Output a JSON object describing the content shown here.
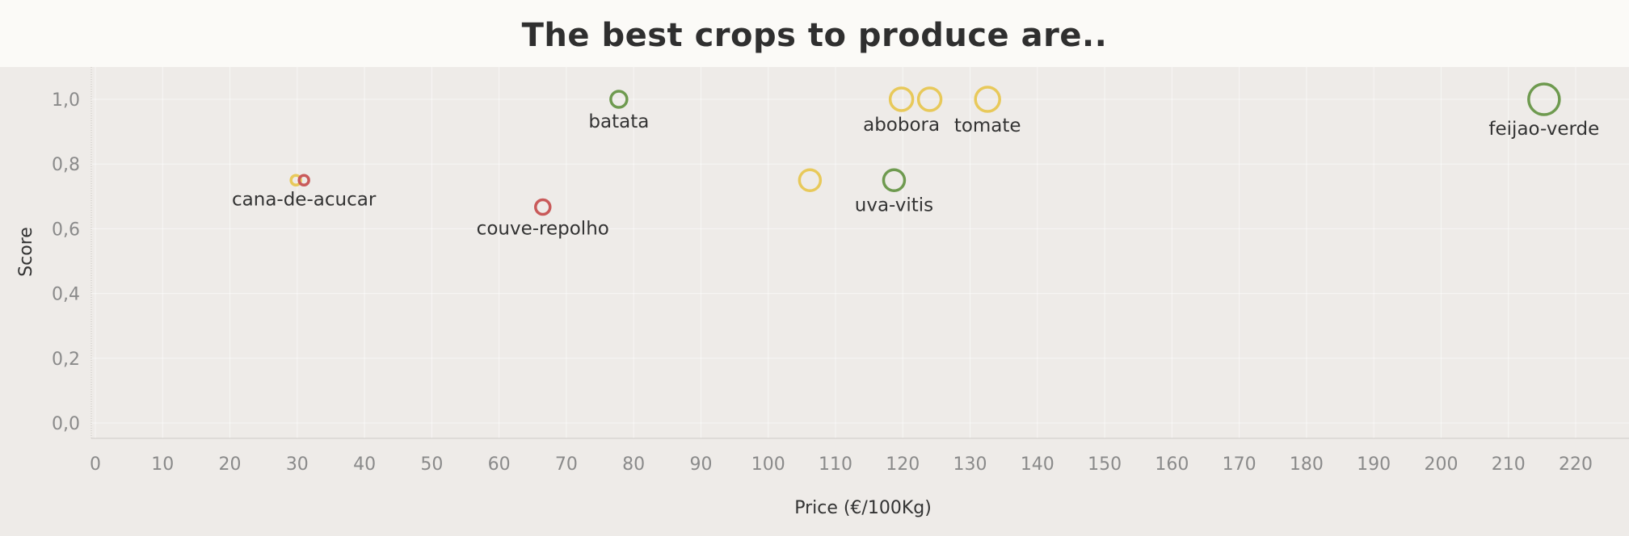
{
  "title": "The best crops to produce are..",
  "chart_data": {
    "type": "scatter",
    "xlabel": "Price (€/100Kg)",
    "ylabel": "Score",
    "xlim": [
      0,
      227
    ],
    "ylim": [
      -0.05,
      1.1
    ],
    "x_ticks": [
      "0",
      "10",
      "20",
      "30",
      "40",
      "50",
      "60",
      "70",
      "80",
      "90",
      "100",
      "110",
      "120",
      "130",
      "140",
      "150",
      "160",
      "170",
      "180",
      "190",
      "200",
      "210",
      "220"
    ],
    "x_tick_values": [
      0,
      10,
      20,
      30,
      40,
      50,
      60,
      70,
      80,
      90,
      100,
      110,
      120,
      130,
      140,
      150,
      160,
      170,
      180,
      190,
      200,
      210,
      220
    ],
    "y_ticks": [
      "0,0",
      "0,2",
      "0,4",
      "0,6",
      "0,8",
      "1,0"
    ],
    "y_tick_values": [
      0.0,
      0.2,
      0.4,
      0.6,
      0.8,
      1.0
    ],
    "grid": true,
    "colors": {
      "yellow": "#e8c95a",
      "green": "#6e9a4f",
      "red": "#c95a5a"
    },
    "points": [
      {
        "label": "",
        "x": 29.8,
        "y": 0.75,
        "size": 6,
        "color": "yellow"
      },
      {
        "label": "cana-de-acucar",
        "x": 31.0,
        "y": 0.75,
        "size": 6,
        "color": "red"
      },
      {
        "label": "couve-repolho",
        "x": 66.5,
        "y": 0.667,
        "size": 9,
        "color": "red"
      },
      {
        "label": "batata",
        "x": 77.8,
        "y": 1.0,
        "size": 10,
        "color": "green"
      },
      {
        "label": "",
        "x": 106.2,
        "y": 0.75,
        "size": 13,
        "color": "yellow"
      },
      {
        "label": "uva-vitis",
        "x": 118.7,
        "y": 0.75,
        "size": 13,
        "color": "green"
      },
      {
        "label": "abobora",
        "x": 119.8,
        "y": 1.0,
        "size": 14,
        "color": "yellow"
      },
      {
        "label": "",
        "x": 124.0,
        "y": 1.0,
        "size": 14,
        "color": "yellow"
      },
      {
        "label": "tomate",
        "x": 132.6,
        "y": 1.0,
        "size": 15,
        "color": "yellow"
      },
      {
        "label": "feijao-verde",
        "x": 215.3,
        "y": 1.0,
        "size": 19,
        "color": "green"
      }
    ]
  }
}
